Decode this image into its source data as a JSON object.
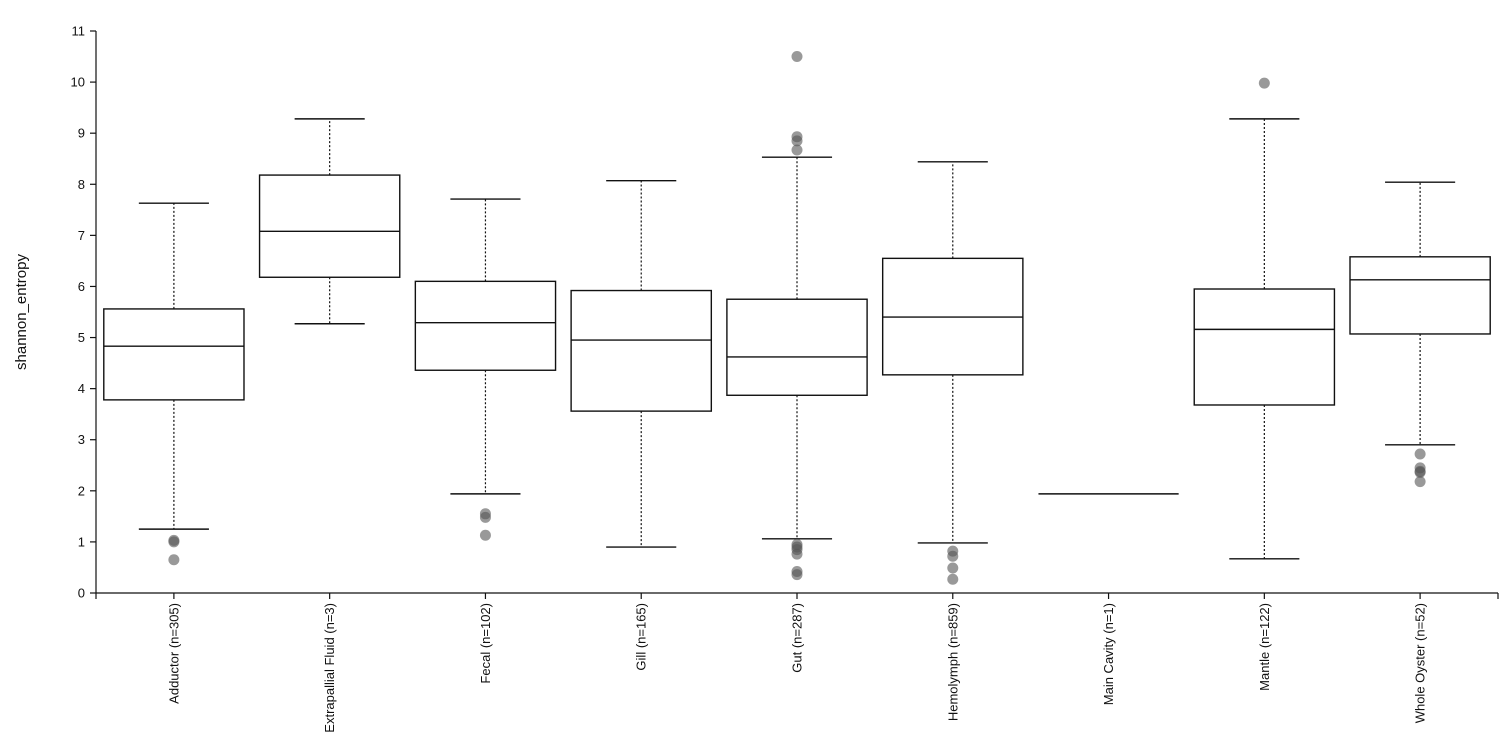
{
  "chart_data": {
    "type": "box",
    "ylabel": "shannon_entropy",
    "xlabel": "",
    "ylim": [
      0,
      11
    ],
    "yticks": [
      "0",
      "1",
      "2",
      "3",
      "4",
      "5",
      "6",
      "7",
      "8",
      "9",
      "10",
      "11"
    ],
    "grid": false,
    "categories": [
      "Adductor (n=305)",
      "Extrapallial Fluid (n=3)",
      "Fecal (n=102)",
      "Gill (n=165)",
      "Gut (n=287)",
      "Hemolymph (n=859)",
      "Main Cavity (n=1)",
      "Mantle (n=122)",
      "Whole Oyster (n=52)"
    ],
    "boxes": [
      {
        "whisker_low": 1.25,
        "q1": 3.78,
        "median": 4.83,
        "q3": 5.56,
        "whisker_high": 7.63,
        "outliers": [
          1.0,
          1.03,
          0.65
        ]
      },
      {
        "whisker_low": 5.27,
        "q1": 6.18,
        "median": 7.08,
        "q3": 8.18,
        "whisker_high": 9.28,
        "outliers": []
      },
      {
        "whisker_low": 1.94,
        "q1": 4.36,
        "median": 5.29,
        "q3": 6.1,
        "whisker_high": 7.71,
        "outliers": [
          1.55,
          1.48,
          1.13
        ]
      },
      {
        "whisker_low": 0.9,
        "q1": 3.56,
        "median": 4.95,
        "q3": 5.92,
        "whisker_high": 8.07,
        "outliers": []
      },
      {
        "whisker_low": 1.06,
        "q1": 3.87,
        "median": 4.62,
        "q3": 5.75,
        "whisker_high": 8.53,
        "outliers": [
          10.5,
          8.93,
          8.85,
          8.67,
          0.95,
          0.9,
          0.85,
          0.76,
          0.42,
          0.36
        ]
      },
      {
        "whisker_low": 0.98,
        "q1": 4.27,
        "median": 5.4,
        "q3": 6.55,
        "whisker_high": 8.44,
        "outliers": [
          0.82,
          0.72,
          0.49,
          0.27
        ]
      },
      {
        "whisker_low": 1.94,
        "q1": 1.94,
        "median": 1.94,
        "q3": 1.94,
        "whisker_high": 1.94,
        "outliers": []
      },
      {
        "whisker_low": 0.67,
        "q1": 3.68,
        "median": 5.16,
        "q3": 5.95,
        "whisker_high": 9.28,
        "outliers": [
          9.98
        ]
      },
      {
        "whisker_low": 2.9,
        "q1": 5.07,
        "median": 6.13,
        "q3": 6.58,
        "whisker_high": 8.04,
        "outliers": [
          2.72,
          2.45,
          2.38,
          2.36,
          2.18
        ]
      }
    ],
    "colors": {
      "box_stroke": "#111111",
      "box_fill": "#ffffff",
      "outlier_fill": "#555555",
      "axis": "#111111"
    }
  }
}
